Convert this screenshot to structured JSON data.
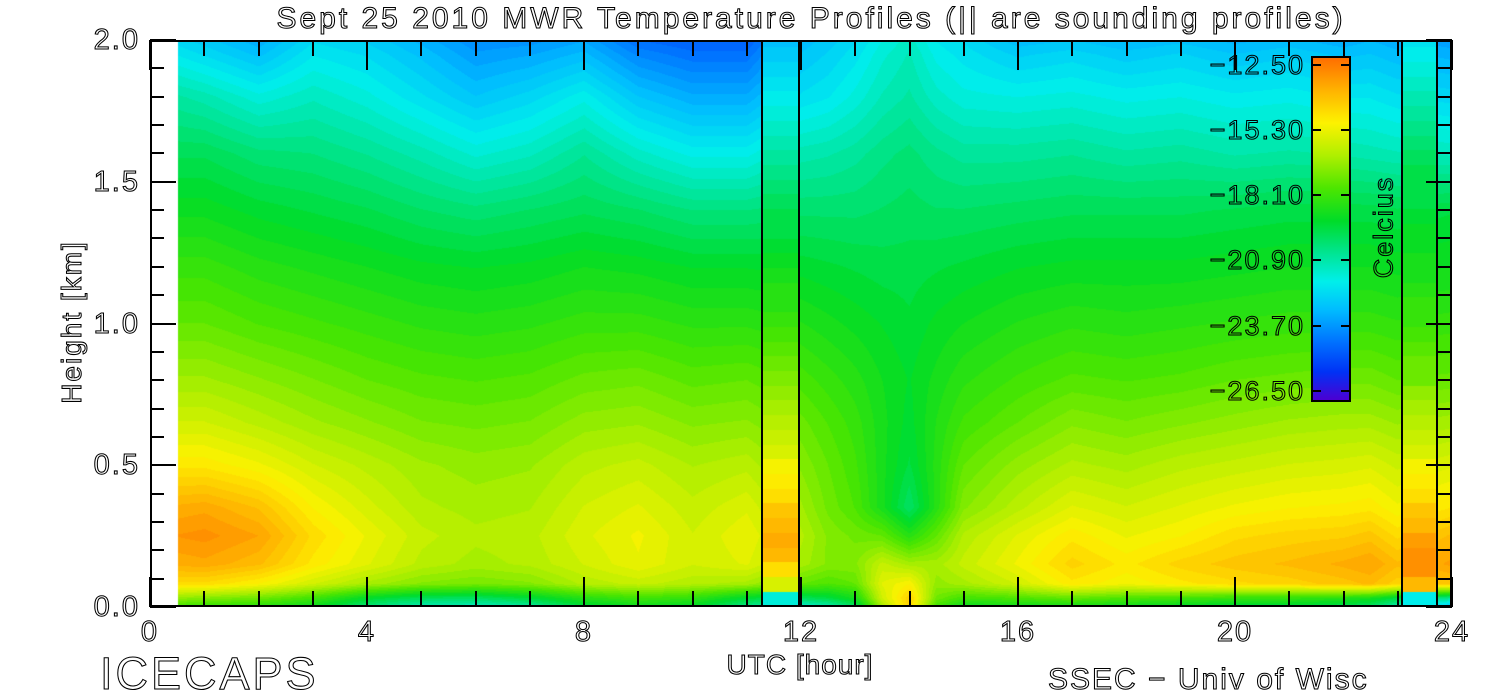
{
  "chart_data": {
    "type": "heatmap",
    "title": "Sept 25 2010 MWR Temperature Profiles (|| are sounding profiles)",
    "xlabel": "UTC [hour]",
    "ylabel": "Height [km]",
    "footer_left": "ICECAPS",
    "footer_right": "SSEC − Univ of Wisc",
    "xlim": [
      0,
      24
    ],
    "ylim": [
      0,
      2
    ],
    "x_tick_labels": [
      "0",
      "4",
      "8",
      "12",
      "16",
      "20",
      "24"
    ],
    "x_major_values": [
      0,
      4,
      8,
      12,
      16,
      20,
      24
    ],
    "x_minor_step": 1,
    "y_tick_labels": [
      "0.0",
      "0.5",
      "1.0",
      "1.5",
      "2.0"
    ],
    "y_major_values": [
      0,
      0.5,
      1,
      1.5,
      2
    ],
    "y_minor_step": 0.1,
    "grid_on": false,
    "data_start_utc": 0.5,
    "contour_interval_c": 0.28,
    "colorbar": {
      "label": "Celcius",
      "tick_labels": [
        "−12.50",
        "−15.30",
        "−18.10",
        "−20.90",
        "−23.70",
        "−26.50"
      ],
      "tick_values": [
        -12.5,
        -15.3,
        -18.1,
        -20.9,
        -23.7,
        -26.5
      ],
      "top_value": -12.2,
      "bottom_value": -26.9,
      "stops": [
        [
          -26.9,
          "#4C00D2"
        ],
        [
          -25.7,
          "#0032F5"
        ],
        [
          -24.4,
          "#0072FF"
        ],
        [
          -23.0,
          "#00BDFF"
        ],
        [
          -21.8,
          "#00EFEA"
        ],
        [
          -20.6,
          "#00E593"
        ],
        [
          -19.2,
          "#00DC28"
        ],
        [
          -17.8,
          "#4CE600"
        ],
        [
          -16.4,
          "#AEEF00"
        ],
        [
          -15.0,
          "#FDF200"
        ],
        [
          -13.6,
          "#FFB300"
        ],
        [
          -12.2,
          "#FF6E00"
        ]
      ]
    },
    "soundings": [
      {
        "utc_from": 11.28,
        "utc_to": 11.96,
        "sample_utc": 11.5,
        "temps_c": [
          -25.5,
          -21.0,
          -15.5,
          -14.0,
          -13.3,
          -14.2,
          -15.3,
          -16.3,
          -17.1,
          -18.1,
          -18.9,
          -19.8,
          -20.8,
          -22.0,
          -22.8,
          -23.0
        ]
      },
      {
        "utc_from": 23.08,
        "utc_to": 23.72,
        "sample_utc": 23.4,
        "temps_c": [
          -25.0,
          -21.5,
          -13.5,
          -12.8,
          -13.3,
          -14.2,
          -15.3,
          -16.3,
          -17.2,
          -18.1,
          -18.8,
          -19.4,
          -19.9,
          -20.9,
          -21.8,
          -22.1
        ]
      }
    ],
    "grid": {
      "times_utc": [
        0.5,
        1,
        2,
        3,
        4,
        5,
        6,
        7,
        8,
        9,
        10,
        11,
        12,
        12.5,
        13,
        13.5,
        14,
        14.5,
        15,
        16,
        17,
        18,
        19,
        20,
        21,
        22,
        22.5,
        23,
        24
      ],
      "heights_km": [
        0.0,
        0.03,
        0.08,
        0.15,
        0.25,
        0.35,
        0.5,
        0.65,
        0.8,
        1.0,
        1.2,
        1.4,
        1.6,
        1.8,
        1.95,
        2.0
      ],
      "temps_c": [
        [
          -18.0,
          -18.2,
          -18.5,
          -19.0,
          -20.3,
          -21.0,
          -21.2,
          -20.8,
          -19.5,
          -19.0,
          -19.2,
          -20.5,
          -21.5,
          -21.0,
          -20.0,
          -16.5,
          -14.2,
          -18.0,
          -19.0,
          -19.0,
          -18.8,
          -19.0,
          -19.2,
          -19.5,
          -19.5,
          -19.8,
          -20.0,
          -21.0,
          -23.0
        ],
        [
          -16.8,
          -17.0,
          -17.3,
          -18.0,
          -19.2,
          -19.8,
          -19.9,
          -19.4,
          -18.5,
          -18.0,
          -18.3,
          -19.3,
          -19.8,
          -19.5,
          -18.8,
          -15.8,
          -14.2,
          -17.3,
          -18.0,
          -17.8,
          -17.5,
          -17.8,
          -18.0,
          -18.2,
          -18.2,
          -18.5,
          -18.8,
          -19.5,
          -20.5
        ],
        [
          -14.5,
          -14.5,
          -15.0,
          -15.8,
          -16.5,
          -17.0,
          -17.2,
          -17.0,
          -16.3,
          -16.0,
          -16.3,
          -16.5,
          -17.5,
          -17.8,
          -17.5,
          -15.5,
          -15.0,
          -16.8,
          -16.5,
          -15.8,
          -14.8,
          -15.2,
          -14.8,
          -14.5,
          -14.3,
          -14.0,
          -13.8,
          -14.3,
          -14.0
        ],
        [
          -13.5,
          -13.4,
          -13.8,
          -14.8,
          -15.5,
          -16.2,
          -16.5,
          -16.3,
          -15.8,
          -15.3,
          -15.8,
          -15.5,
          -16.5,
          -17.0,
          -17.0,
          -16.0,
          -16.5,
          -16.5,
          -16.0,
          -15.2,
          -14.3,
          -14.8,
          -14.3,
          -14.0,
          -13.8,
          -13.5,
          -13.3,
          -13.8,
          -13.2
        ],
        [
          -13.0,
          -12.9,
          -13.3,
          -14.5,
          -15.3,
          -16.0,
          -16.3,
          -16.2,
          -15.6,
          -15.2,
          -15.8,
          -15.3,
          -16.3,
          -17.0,
          -17.3,
          -17.5,
          -18.5,
          -17.5,
          -16.3,
          -15.5,
          -14.8,
          -15.3,
          -15.0,
          -14.5,
          -14.3,
          -14.2,
          -14.0,
          -14.5,
          -13.8
        ],
        [
          -13.5,
          -13.4,
          -13.9,
          -15.0,
          -15.7,
          -16.3,
          -16.5,
          -16.4,
          -15.8,
          -15.5,
          -16.0,
          -15.6,
          -16.6,
          -17.3,
          -17.8,
          -18.8,
          -20.0,
          -18.5,
          -17.0,
          -16.2,
          -15.5,
          -15.8,
          -15.5,
          -15.2,
          -15.0,
          -14.9,
          -14.8,
          -15.2,
          -14.7
        ],
        [
          -14.8,
          -14.8,
          -15.2,
          -15.8,
          -16.2,
          -16.6,
          -16.8,
          -16.7,
          -16.2,
          -16.0,
          -16.4,
          -16.2,
          -17.0,
          -17.5,
          -18.0,
          -18.8,
          -19.5,
          -18.5,
          -17.5,
          -16.8,
          -16.3,
          -16.5,
          -16.2,
          -16.0,
          -15.8,
          -15.7,
          -15.6,
          -15.9,
          -15.6
        ],
        [
          -15.8,
          -15.8,
          -16.2,
          -16.6,
          -16.9,
          -17.2,
          -17.3,
          -17.2,
          -16.8,
          -16.7,
          -17.0,
          -16.9,
          -17.4,
          -17.8,
          -18.2,
          -18.8,
          -19.3,
          -18.6,
          -18.0,
          -17.5,
          -17.0,
          -17.2,
          -17.0,
          -16.8,
          -16.6,
          -16.5,
          -16.5,
          -16.7,
          -16.5
        ],
        [
          -16.6,
          -16.6,
          -16.9,
          -17.2,
          -17.5,
          -17.7,
          -17.8,
          -17.7,
          -17.4,
          -17.3,
          -17.6,
          -17.5,
          -17.9,
          -18.2,
          -18.5,
          -18.9,
          -19.2,
          -18.8,
          -18.4,
          -18.0,
          -17.7,
          -17.8,
          -17.7,
          -17.5,
          -17.4,
          -17.3,
          -17.3,
          -17.5,
          -17.4
        ],
        [
          -17.5,
          -17.5,
          -17.8,
          -18.0,
          -18.2,
          -18.4,
          -18.5,
          -18.4,
          -18.2,
          -18.2,
          -18.4,
          -18.4,
          -18.6,
          -18.8,
          -19.0,
          -19.2,
          -19.4,
          -19.1,
          -18.9,
          -18.6,
          -18.4,
          -18.5,
          -18.4,
          -18.3,
          -18.2,
          -18.2,
          -18.2,
          -18.3,
          -18.2
        ],
        [
          -18.2,
          -18.2,
          -18.5,
          -18.7,
          -18.9,
          -19.1,
          -19.2,
          -19.1,
          -18.9,
          -19.0,
          -19.2,
          -19.2,
          -19.3,
          -19.4,
          -19.5,
          -19.6,
          -19.6,
          -19.5,
          -19.4,
          -19.2,
          -19.1,
          -19.1,
          -19.1,
          -19.0,
          -18.9,
          -18.9,
          -18.9,
          -19.0,
          -18.9
        ],
        [
          -19.0,
          -19.0,
          -19.3,
          -19.5,
          -19.7,
          -20.0,
          -20.2,
          -20.0,
          -19.8,
          -20.0,
          -20.3,
          -20.3,
          -20.1,
          -20.1,
          -20.1,
          -20.0,
          -19.9,
          -20.0,
          -20.0,
          -19.9,
          -19.8,
          -19.8,
          -19.8,
          -19.7,
          -19.6,
          -19.6,
          -19.6,
          -19.7,
          -19.5
        ],
        [
          -19.8,
          -19.8,
          -20.2,
          -20.3,
          -20.6,
          -21.0,
          -21.5,
          -21.2,
          -20.6,
          -21.3,
          -21.8,
          -21.8,
          -21.0,
          -20.9,
          -20.7,
          -20.4,
          -20.2,
          -20.5,
          -20.7,
          -20.7,
          -20.6,
          -20.8,
          -20.7,
          -20.9,
          -20.8,
          -20.9,
          -21.0,
          -21.1,
          -21.2
        ],
        [
          -20.8,
          -21.0,
          -21.6,
          -21.2,
          -21.6,
          -22.2,
          -22.8,
          -22.4,
          -21.8,
          -22.8,
          -23.3,
          -23.3,
          -22.2,
          -22.0,
          -21.6,
          -21.1,
          -20.8,
          -21.3,
          -21.6,
          -21.7,
          -21.6,
          -21.8,
          -21.7,
          -21.9,
          -21.8,
          -22.0,
          -22.0,
          -22.2,
          -22.4
        ],
        [
          -22.0,
          -22.3,
          -22.9,
          -22.0,
          -22.3,
          -22.9,
          -23.6,
          -23.4,
          -23.0,
          -24.0,
          -24.4,
          -24.4,
          -22.8,
          -22.5,
          -22.1,
          -21.5,
          -21.1,
          -21.8,
          -22.1,
          -22.6,
          -22.4,
          -22.7,
          -22.5,
          -22.8,
          -22.6,
          -22.9,
          -22.8,
          -23.0,
          -23.2
        ],
        [
          -22.4,
          -22.7,
          -23.3,
          -22.3,
          -22.6,
          -23.2,
          -23.9,
          -23.8,
          -23.4,
          -24.5,
          -24.8,
          -24.8,
          -23.0,
          -22.7,
          -22.3,
          -21.7,
          -21.3,
          -22.0,
          -22.3,
          -23.0,
          -22.8,
          -23.1,
          -22.9,
          -23.2,
          -23.0,
          -23.3,
          -23.1,
          -23.3,
          -23.6
        ]
      ]
    }
  }
}
